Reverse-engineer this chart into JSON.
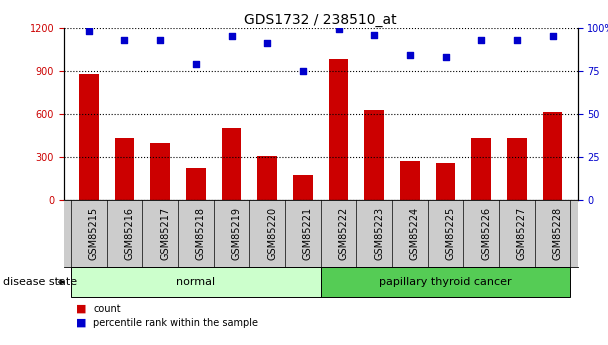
{
  "title": "GDS1732 / 238510_at",
  "samples": [
    "GSM85215",
    "GSM85216",
    "GSM85217",
    "GSM85218",
    "GSM85219",
    "GSM85220",
    "GSM85221",
    "GSM85222",
    "GSM85223",
    "GSM85224",
    "GSM85225",
    "GSM85226",
    "GSM85227",
    "GSM85228"
  ],
  "bar_values": [
    880,
    435,
    400,
    220,
    500,
    310,
    175,
    980,
    630,
    270,
    255,
    430,
    430,
    610
  ],
  "dot_values": [
    98,
    93,
    93,
    79,
    95,
    91,
    75,
    99,
    96,
    84,
    83,
    93,
    93,
    95
  ],
  "bar_color": "#cc0000",
  "dot_color": "#0000cc",
  "ylim_left": [
    0,
    1200
  ],
  "ylim_right": [
    0,
    100
  ],
  "yticks_left": [
    0,
    300,
    600,
    900,
    1200
  ],
  "yticks_right": [
    0,
    25,
    50,
    75,
    100
  ],
  "yticklabels_right": [
    "0",
    "25",
    "50",
    "75",
    "100%"
  ],
  "normal_label": "normal",
  "cancer_label": "papillary thyroid cancer",
  "disease_state_label": "disease state",
  "legend_bar": "count",
  "legend_dot": "percentile rank within the sample",
  "normal_bg": "#ccffcc",
  "cancer_bg": "#55cc55",
  "sample_bg": "#cccccc",
  "background_color": "#ffffff",
  "title_fontsize": 10,
  "tick_fontsize": 7,
  "label_fontsize": 8
}
